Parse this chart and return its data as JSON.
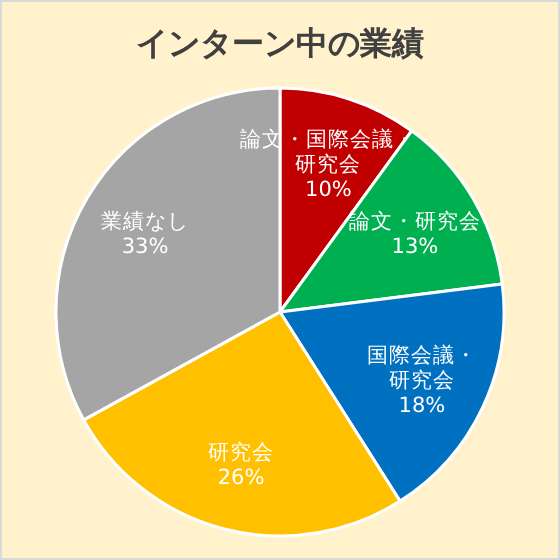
{
  "chart_data": {
    "type": "pie",
    "title": "インターン中の業績",
    "categories": [
      "論文・国際会議・研究会",
      "論文・研究会",
      "国際会議・研究会",
      "研究会",
      "業績なし"
    ],
    "values": [
      10,
      13,
      18,
      26,
      33
    ],
    "colors": [
      "#c00000",
      "#00b050",
      "#0070c0",
      "#ffc000",
      "#a5a5a5"
    ],
    "value_labels": [
      "10%",
      "13%",
      "18%",
      "26%",
      "33%"
    ]
  }
}
